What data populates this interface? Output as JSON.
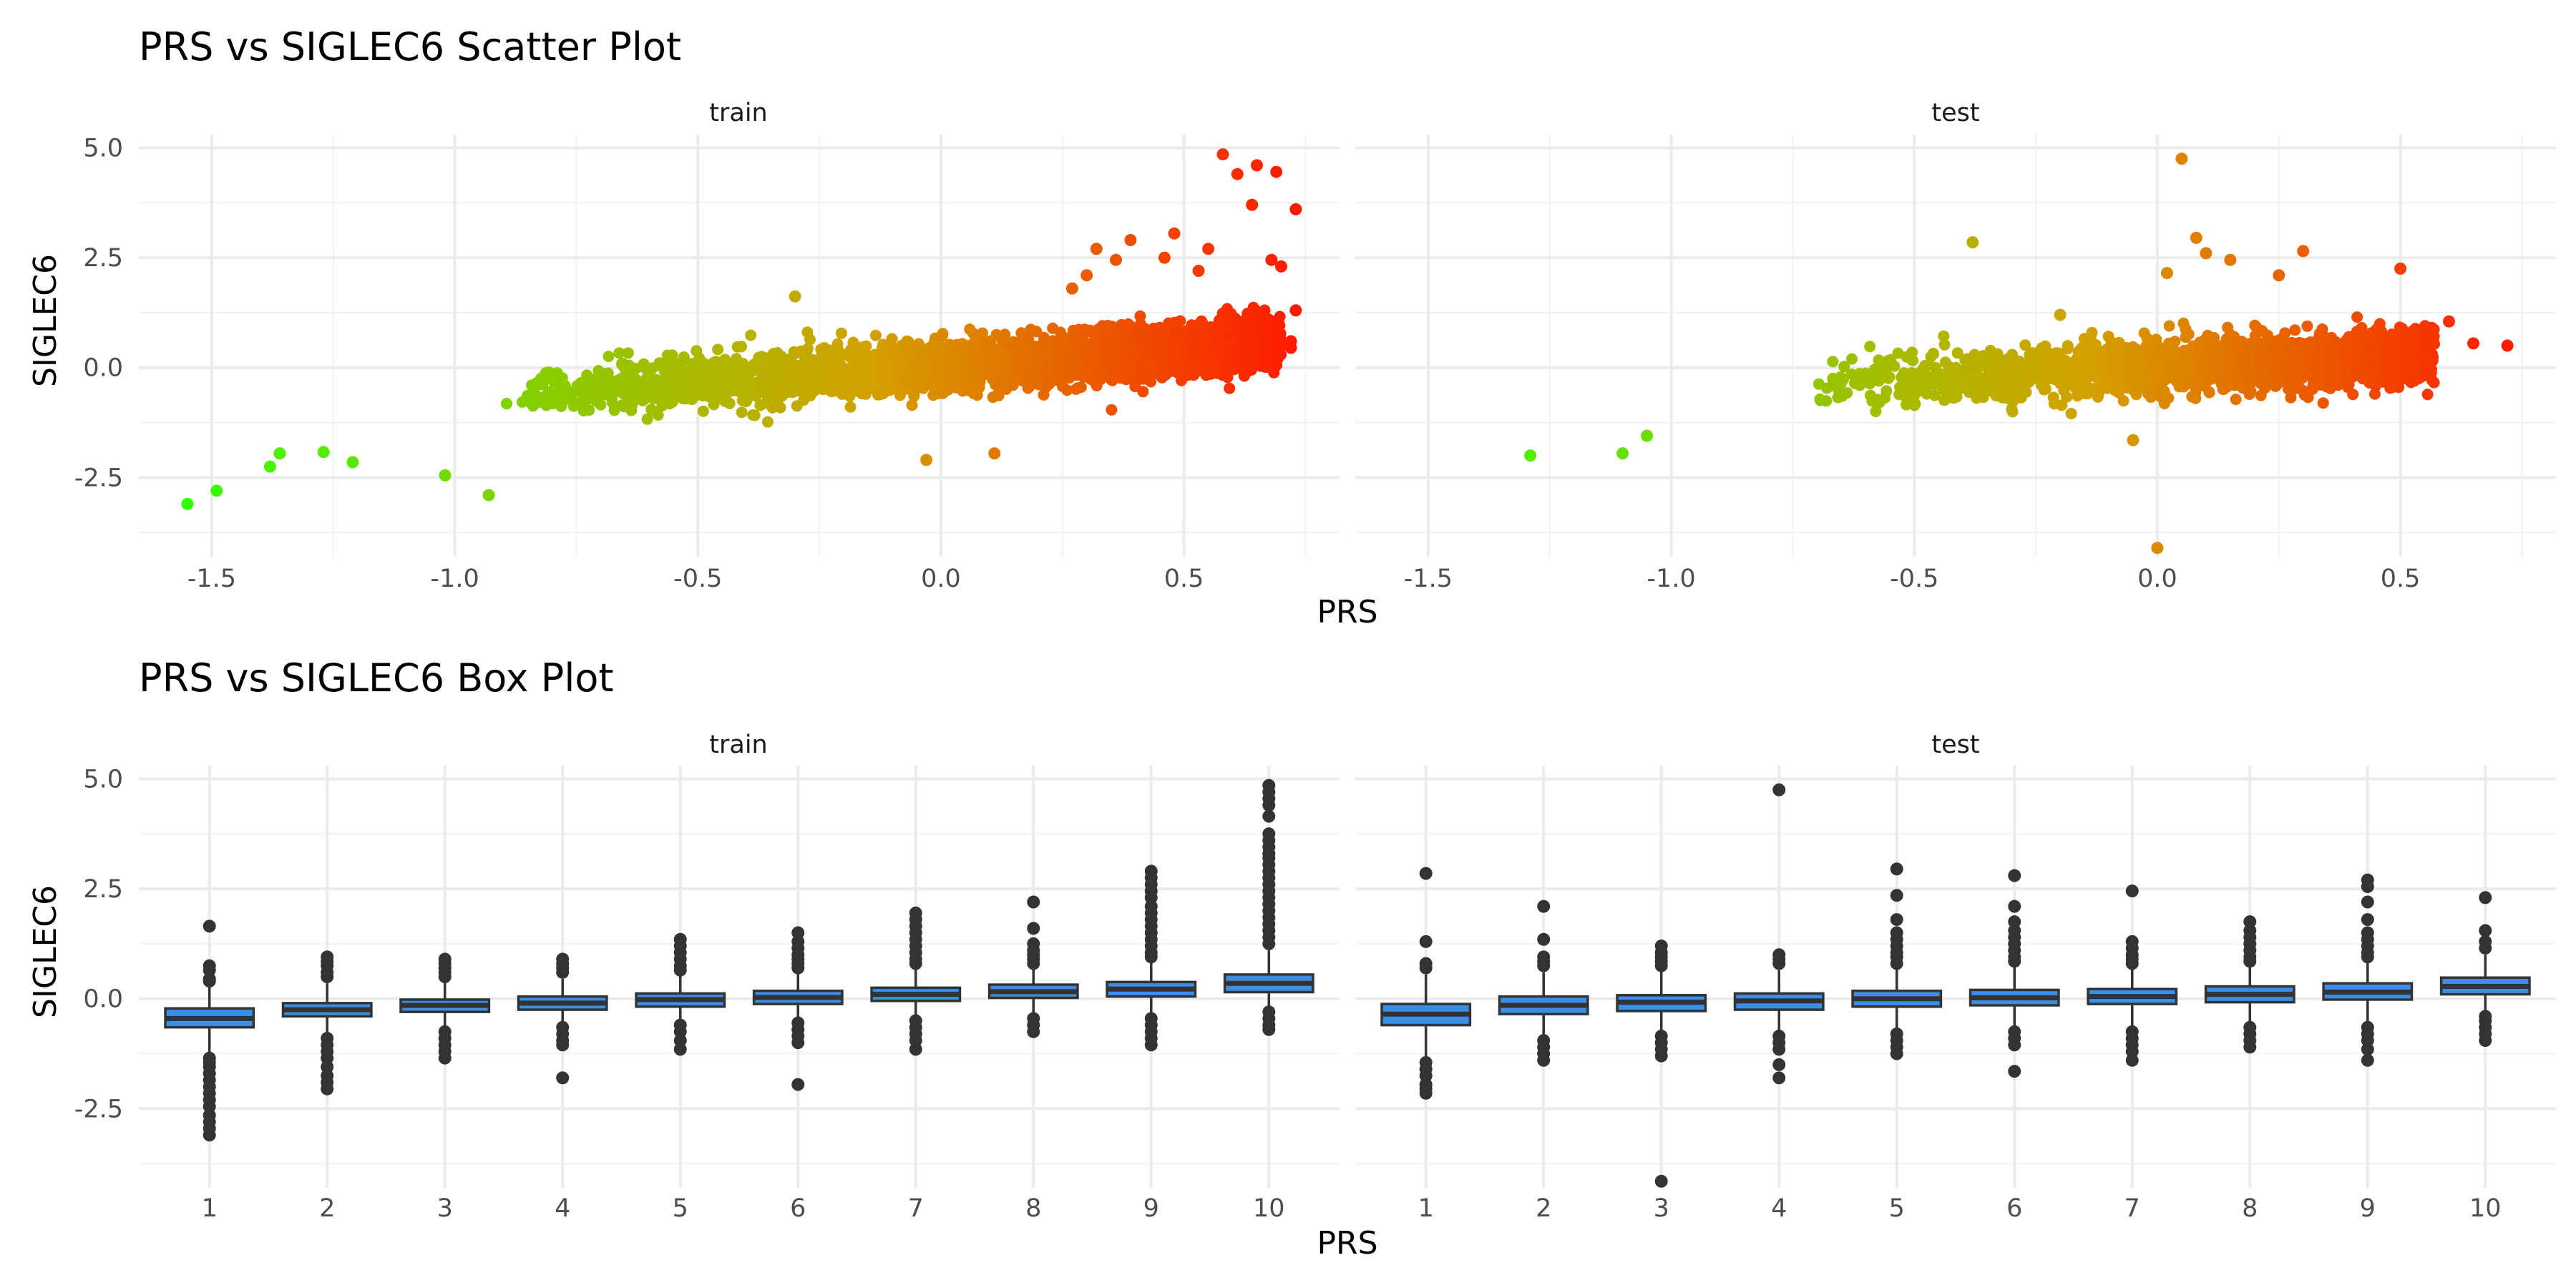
{
  "chart_data": [
    {
      "type": "scatter",
      "title": "PRS vs SIGLEC6 Scatter Plot",
      "xlabel": "PRS",
      "ylabel": "SIGLEC6",
      "xlim": [
        -1.65,
        0.82
      ],
      "ylim": [
        -4.3,
        5.3
      ],
      "x_ticks": [
        -1.5,
        -1.0,
        -0.5,
        0.0,
        0.5
      ],
      "y_ticks": [
        -2.5,
        0.0,
        2.5,
        5.0
      ],
      "x_tick_labels": [
        "-1.5",
        "-1.0",
        "-0.5",
        "0.0",
        "0.5"
      ],
      "y_tick_labels": [
        "-2.5",
        "0.0",
        "2.5",
        "5.0"
      ],
      "grid": true,
      "legend": "none",
      "color_scale": {
        "low": "#33ff00",
        "mid": "#d4a000",
        "high": "#ff1a00",
        "low_value": -1.55,
        "high_value": 0.73
      },
      "panels": [
        {
          "label": "train",
          "trend": {
            "x_min": -0.9,
            "x_max": 0.7,
            "slope": 0.75,
            "intercept": 0.02,
            "spread": 0.28
          },
          "points": [
            [
              -1.55,
              -3.1
            ],
            [
              -1.49,
              -2.8
            ],
            [
              -1.38,
              -2.25
            ],
            [
              -1.36,
              -1.95
            ],
            [
              -1.27,
              -1.92
            ],
            [
              -1.21,
              -2.15
            ],
            [
              -1.02,
              -2.45
            ],
            [
              -0.93,
              -2.9
            ],
            [
              -0.3,
              1.62
            ],
            [
              -0.03,
              -2.1
            ],
            [
              0.11,
              -1.95
            ],
            [
              0.27,
              1.8
            ],
            [
              0.3,
              2.1
            ],
            [
              0.32,
              2.7
            ],
            [
              0.36,
              2.45
            ],
            [
              0.39,
              2.9
            ],
            [
              0.46,
              2.5
            ],
            [
              0.48,
              3.05
            ],
            [
              0.53,
              2.2
            ],
            [
              0.55,
              2.7
            ],
            [
              0.58,
              4.85
            ],
            [
              0.61,
              4.4
            ],
            [
              0.64,
              3.7
            ],
            [
              0.65,
              4.6
            ],
            [
              0.68,
              2.45
            ],
            [
              0.69,
              4.45
            ],
            [
              0.7,
              2.3
            ],
            [
              0.72,
              0.6
            ],
            [
              0.73,
              3.6
            ],
            [
              0.73,
              1.3
            ],
            [
              0.72,
              0.45
            ]
          ]
        },
        {
          "label": "test",
          "trend": {
            "x_min": -0.75,
            "x_max": 0.57,
            "slope": 0.55,
            "intercept": 0.0,
            "spread": 0.3
          },
          "points": [
            [
              -1.29,
              -2.0
            ],
            [
              -1.1,
              -1.95
            ],
            [
              -1.05,
              -1.55
            ],
            [
              -0.38,
              2.85
            ],
            [
              0.05,
              4.75
            ],
            [
              0.08,
              2.95
            ],
            [
              0.1,
              2.6
            ],
            [
              0.0,
              -4.1
            ],
            [
              0.15,
              2.45
            ],
            [
              0.3,
              2.65
            ],
            [
              0.25,
              2.1
            ],
            [
              0.5,
              2.25
            ],
            [
              0.65,
              0.55
            ],
            [
              0.72,
              0.5
            ],
            [
              0.6,
              1.05
            ],
            [
              0.02,
              2.15
            ],
            [
              -0.2,
              1.2
            ],
            [
              -0.05,
              -1.65
            ]
          ]
        }
      ]
    },
    {
      "type": "box",
      "title": "PRS vs SIGLEC6 Box Plot",
      "xlabel": "PRS",
      "ylabel": "SIGLEC6",
      "categories": [
        "1",
        "2",
        "3",
        "4",
        "5",
        "6",
        "7",
        "8",
        "9",
        "10"
      ],
      "ylim": [
        -4.3,
        5.3
      ],
      "y_ticks": [
        -2.5,
        0.0,
        2.5,
        5.0
      ],
      "y_tick_labels": [
        "-2.5",
        "0.0",
        "2.5",
        "5.0"
      ],
      "grid": true,
      "box_fill": "#3a8ee6",
      "panels": [
        {
          "label": "train",
          "boxes": [
            {
              "q1": -0.65,
              "median": -0.45,
              "q3": -0.22,
              "whisker_low": -1.25,
              "whisker_high": 0.3,
              "outliers": [
                1.65,
                0.75,
                0.65,
                0.45,
                0.4,
                -1.35,
                -1.45,
                -1.55,
                -1.7,
                -1.85,
                -2.0,
                -2.15,
                -2.3,
                -2.45,
                -2.65,
                -2.8,
                -2.95,
                -3.1
              ]
            },
            {
              "q1": -0.4,
              "median": -0.25,
              "q3": -0.1,
              "whisker_low": -0.85,
              "whisker_high": 0.35,
              "outliers": [
                0.95,
                0.85,
                0.75,
                0.6,
                0.5,
                -0.9,
                -1.05,
                -1.2,
                -1.35,
                -1.55,
                -1.75,
                -1.9,
                -2.05
              ]
            },
            {
              "q1": -0.3,
              "median": -0.15,
              "q3": -0.02,
              "whisker_low": -0.7,
              "whisker_high": 0.4,
              "outliers": [
                0.9,
                0.8,
                0.7,
                0.6,
                0.5,
                -0.75,
                -0.9,
                -1.05,
                -1.2,
                -1.35
              ]
            },
            {
              "q1": -0.25,
              "median": -0.1,
              "q3": 0.05,
              "whisker_low": -0.65,
              "whisker_high": 0.45,
              "outliers": [
                0.9,
                0.8,
                0.7,
                0.6,
                -0.65,
                -0.8,
                -0.95,
                -1.05,
                -1.8
              ]
            },
            {
              "q1": -0.18,
              "median": -0.02,
              "q3": 0.12,
              "whisker_low": -0.6,
              "whisker_high": 0.55,
              "outliers": [
                1.35,
                1.2,
                1.05,
                0.9,
                0.75,
                0.65,
                -0.6,
                -0.75,
                -0.95,
                -1.15
              ]
            },
            {
              "q1": -0.12,
              "median": 0.03,
              "q3": 0.18,
              "whisker_low": -0.55,
              "whisker_high": 0.6,
              "outliers": [
                1.5,
                1.3,
                1.15,
                1.0,
                0.9,
                0.8,
                0.7,
                -0.55,
                -0.7,
                -0.85,
                -1.0,
                -1.95
              ]
            },
            {
              "q1": -0.05,
              "median": 0.1,
              "q3": 0.25,
              "whisker_low": -0.5,
              "whisker_high": 0.7,
              "outliers": [
                1.95,
                1.8,
                1.65,
                1.5,
                1.35,
                1.2,
                1.05,
                0.9,
                0.8,
                -0.5,
                -0.65,
                -0.8,
                -0.95,
                -1.15
              ]
            },
            {
              "q1": 0.02,
              "median": 0.16,
              "q3": 0.32,
              "whisker_low": -0.4,
              "whisker_high": 0.75,
              "outliers": [
                2.2,
                1.6,
                1.25,
                1.1,
                1.0,
                0.9,
                0.8,
                -0.45,
                -0.6,
                -0.75
              ]
            },
            {
              "q1": 0.05,
              "median": 0.22,
              "q3": 0.38,
              "whisker_low": -0.45,
              "whisker_high": 0.85,
              "outliers": [
                2.9,
                2.75,
                2.6,
                2.45,
                2.3,
                2.1,
                1.95,
                1.8,
                1.65,
                1.5,
                1.35,
                1.2,
                1.05,
                0.95,
                -0.45,
                -0.6,
                -0.75,
                -0.9,
                -1.05
              ]
            },
            {
              "q1": 0.15,
              "median": 0.35,
              "q3": 0.55,
              "whisker_low": -0.2,
              "whisker_high": 1.1,
              "outliers": [
                4.85,
                4.7,
                4.55,
                4.4,
                4.15,
                3.75,
                3.6,
                3.45,
                3.3,
                3.2,
                3.05,
                2.9,
                2.75,
                2.6,
                2.45,
                2.3,
                2.15,
                2.0,
                1.85,
                1.7,
                1.55,
                1.4,
                1.25,
                -0.3,
                -0.45,
                -0.6,
                -0.7
              ]
            }
          ]
        },
        {
          "label": "test",
          "boxes": [
            {
              "q1": -0.6,
              "median": -0.35,
              "q3": -0.12,
              "whisker_low": -1.35,
              "whisker_high": 0.55,
              "outliers": [
                2.85,
                1.3,
                0.8,
                0.7,
                -1.45,
                -1.6,
                -1.75,
                -1.95,
                -2.05,
                -2.15
              ]
            },
            {
              "q1": -0.35,
              "median": -0.15,
              "q3": 0.05,
              "whisker_low": -0.9,
              "whisker_high": 0.6,
              "outliers": [
                2.1,
                1.35,
                0.95,
                0.85,
                0.75,
                -0.95,
                -1.1,
                -1.25,
                -1.4
              ]
            },
            {
              "q1": -0.28,
              "median": -0.08,
              "q3": 0.08,
              "whisker_low": -0.8,
              "whisker_high": 0.65,
              "outliers": [
                1.2,
                1.05,
                0.95,
                0.85,
                0.75,
                -0.85,
                -1.0,
                -1.15,
                -1.3,
                -4.15
              ]
            },
            {
              "q1": -0.25,
              "median": -0.05,
              "q3": 0.12,
              "whisker_low": -0.8,
              "whisker_high": 0.65,
              "outliers": [
                4.75,
                1.0,
                0.9,
                0.8,
                -0.85,
                -1.0,
                -1.15,
                -1.5,
                -1.8
              ]
            },
            {
              "q1": -0.18,
              "median": 0.0,
              "q3": 0.18,
              "whisker_low": -0.75,
              "whisker_high": 0.7,
              "outliers": [
                2.95,
                2.35,
                1.8,
                1.5,
                1.35,
                1.2,
                1.05,
                0.95,
                0.8,
                -0.8,
                -0.95,
                -1.1,
                -1.25
              ]
            },
            {
              "q1": -0.15,
              "median": 0.02,
              "q3": 0.2,
              "whisker_low": -0.7,
              "whisker_high": 0.75,
              "outliers": [
                2.8,
                2.1,
                1.75,
                1.55,
                1.4,
                1.25,
                1.1,
                0.95,
                0.85,
                -0.75,
                -0.9,
                -1.05,
                -1.65
              ]
            },
            {
              "q1": -0.12,
              "median": 0.05,
              "q3": 0.22,
              "whisker_low": -0.7,
              "whisker_high": 0.75,
              "outliers": [
                2.45,
                1.3,
                1.15,
                1.0,
                0.9,
                0.8,
                -0.75,
                -0.9,
                -1.05,
                -1.2,
                -1.4
              ]
            },
            {
              "q1": -0.08,
              "median": 0.1,
              "q3": 0.28,
              "whisker_low": -0.6,
              "whisker_high": 0.8,
              "outliers": [
                1.75,
                1.55,
                1.4,
                1.25,
                1.1,
                0.95,
                0.85,
                -0.65,
                -0.8,
                -0.95,
                -1.1
              ]
            },
            {
              "q1": -0.02,
              "median": 0.15,
              "q3": 0.35,
              "whisker_low": -0.6,
              "whisker_high": 0.85,
              "outliers": [
                2.7,
                2.55,
                2.2,
                1.8,
                1.5,
                1.35,
                1.2,
                1.05,
                0.95,
                -0.65,
                -0.8,
                -0.95,
                -1.15,
                -1.4
              ]
            },
            {
              "q1": 0.1,
              "median": 0.28,
              "q3": 0.48,
              "whisker_low": -0.35,
              "whisker_high": 1.0,
              "outliers": [
                2.3,
                1.55,
                1.3,
                1.15,
                -0.4,
                -0.5,
                -0.65,
                -0.8,
                -0.95
              ]
            }
          ]
        }
      ]
    }
  ]
}
